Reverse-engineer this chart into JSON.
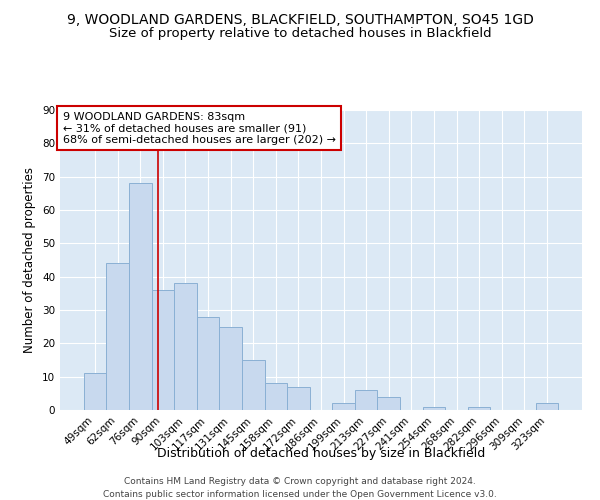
{
  "title": "9, WOODLAND GARDENS, BLACKFIELD, SOUTHAMPTON, SO45 1GD",
  "subtitle": "Size of property relative to detached houses in Blackfield",
  "xlabel": "Distribution of detached houses by size in Blackfield",
  "ylabel": "Number of detached properties",
  "bar_labels": [
    "49sqm",
    "62sqm",
    "76sqm",
    "90sqm",
    "103sqm",
    "117sqm",
    "131sqm",
    "145sqm",
    "158sqm",
    "172sqm",
    "186sqm",
    "199sqm",
    "213sqm",
    "227sqm",
    "241sqm",
    "254sqm",
    "268sqm",
    "282sqm",
    "296sqm",
    "309sqm",
    "323sqm"
  ],
  "bar_values": [
    11,
    44,
    68,
    36,
    38,
    28,
    25,
    15,
    8,
    7,
    0,
    2,
    6,
    4,
    0,
    1,
    0,
    1,
    0,
    0,
    2
  ],
  "bar_color": "#c8d9ee",
  "bar_edge_color": "#8ab0d4",
  "vline_color": "#cc0000",
  "vline_x": 2.78,
  "ylim": [
    0,
    90
  ],
  "annotation_title": "9 WOODLAND GARDENS: 83sqm",
  "annotation_line1": "← 31% of detached houses are smaller (91)",
  "annotation_line2": "68% of semi-detached houses are larger (202) →",
  "annotation_box_color": "#ffffff",
  "annotation_box_edge": "#cc0000",
  "footer1": "Contains HM Land Registry data © Crown copyright and database right 2024.",
  "footer2": "Contains public sector information licensed under the Open Government Licence v3.0.",
  "title_fontsize": 10,
  "subtitle_fontsize": 9.5,
  "tick_fontsize": 7.5,
  "ylabel_fontsize": 8.5,
  "xlabel_fontsize": 9,
  "annotation_fontsize": 8,
  "footer_fontsize": 6.5
}
